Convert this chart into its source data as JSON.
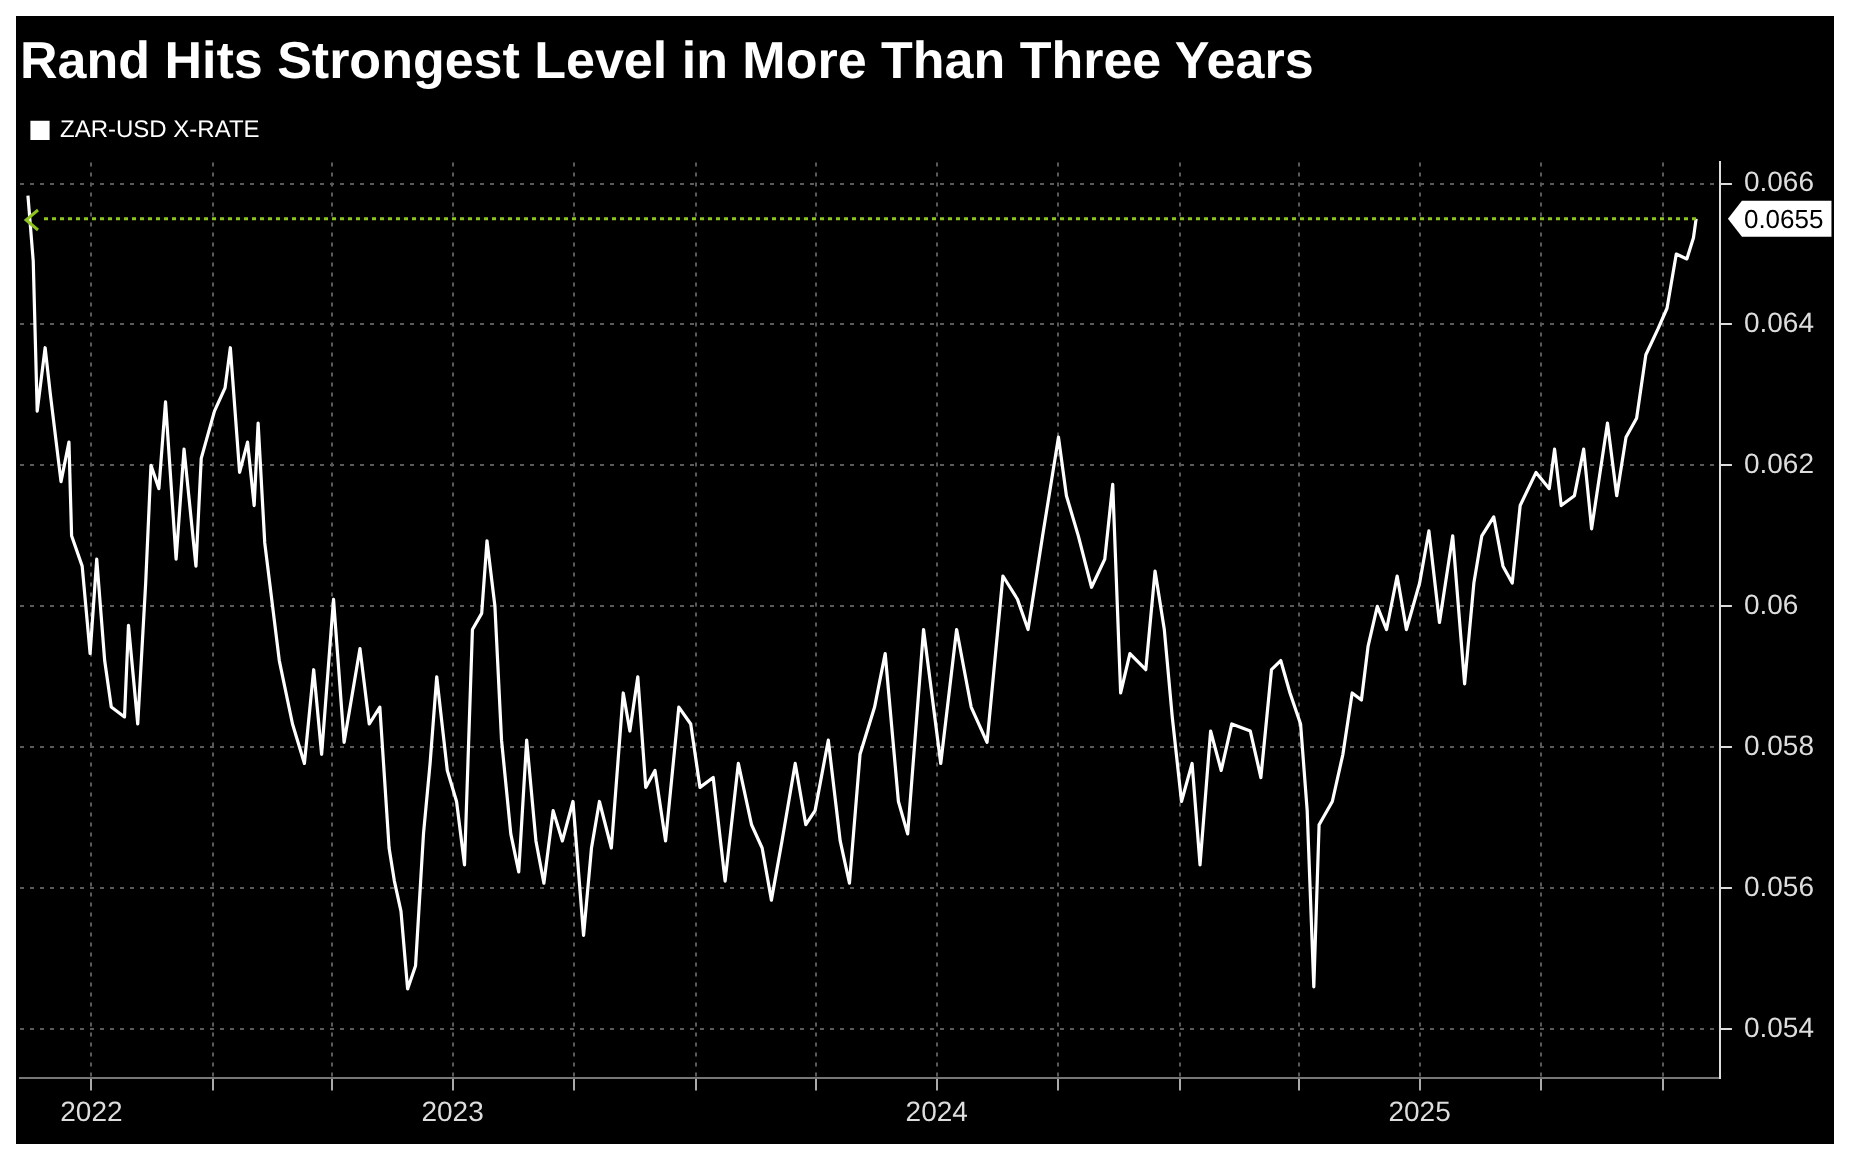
{
  "chart_data": {
    "type": "line",
    "title": "Rand Hits Strongest Level in More Than Three Years",
    "legend": "top left",
    "grid": true,
    "marker": "none",
    "xlim": [
      "2022-08-08",
      "2026-02-13"
    ],
    "ylim": [
      0.0533,
      0.0663
    ],
    "xticks": [
      {
        "value": "2022-10-01",
        "label": "2022"
      },
      {
        "value": "2023-01-01",
        "label": null
      },
      {
        "value": "2023-04-01",
        "label": null
      },
      {
        "value": "2023-07-01",
        "label": "2023"
      },
      {
        "value": "2023-10-01",
        "label": null
      },
      {
        "value": "2024-01-01",
        "label": null
      },
      {
        "value": "2024-04-01",
        "label": null
      },
      {
        "value": "2024-07-01",
        "label": "2024"
      },
      {
        "value": "2024-10-01",
        "label": null
      },
      {
        "value": "2025-01-01",
        "label": null
      },
      {
        "value": "2025-04-01",
        "label": null
      },
      {
        "value": "2025-07-01",
        "label": "2025"
      },
      {
        "value": "2025-10-01",
        "label": null
      },
      {
        "value": "2026-01-01",
        "label": null
      }
    ],
    "yticks": [
      0.066,
      0.064,
      0.062,
      0.06,
      0.058,
      0.056,
      0.054
    ],
    "ref_lines": [
      {
        "axis": "y",
        "value": 0.0655,
        "label": "0.0655",
        "color": "#8fc31f",
        "line_style": "dotted"
      }
    ],
    "x": [
      "2022-08-14",
      "2022-08-18",
      "2022-08-21",
      "2022-08-27",
      "2022-08-31",
      "2022-09-08",
      "2022-09-14",
      "2022-09-16",
      "2022-09-24",
      "2022-09-30",
      "2022-10-05",
      "2022-10-11",
      "2022-10-16",
      "2022-10-26",
      "2022-10-29",
      "2022-11-05",
      "2022-11-11",
      "2022-11-15",
      "2022-11-21",
      "2022-11-26",
      "2022-12-04",
      "2022-12-10",
      "2022-12-19",
      "2022-12-23",
      "2023-01-02",
      "2023-01-10",
      "2023-01-14",
      "2023-01-21",
      "2023-01-27",
      "2023-02-01",
      "2023-02-04",
      "2023-02-09",
      "2023-02-20",
      "2023-03-02",
      "2023-03-11",
      "2023-03-18",
      "2023-03-24",
      "2023-04-02",
      "2023-04-10",
      "2023-04-22",
      "2023-04-29",
      "2023-05-07",
      "2023-05-14",
      "2023-05-18",
      "2023-05-23",
      "2023-05-28",
      "2023-06-03",
      "2023-06-09",
      "2023-06-14",
      "2023-06-19",
      "2023-06-27",
      "2023-07-04",
      "2023-07-10",
      "2023-07-16",
      "2023-07-23",
      "2023-07-27",
      "2023-08-02",
      "2023-08-07",
      "2023-08-14",
      "2023-08-20",
      "2023-08-26",
      "2023-09-02",
      "2023-09-08",
      "2023-09-15",
      "2023-09-22",
      "2023-09-30",
      "2023-10-08",
      "2023-10-14",
      "2023-10-20",
      "2023-10-29",
      "2023-11-07",
      "2023-11-12",
      "2023-11-18",
      "2023-11-24",
      "2023-12-01",
      "2023-12-09",
      "2023-12-19",
      "2023-12-28",
      "2024-01-04",
      "2024-01-14",
      "2024-01-23",
      "2024-02-02",
      "2024-02-12",
      "2024-02-20",
      "2024-02-27",
      "2024-03-06",
      "2024-03-16",
      "2024-03-24",
      "2024-03-31",
      "2024-04-10",
      "2024-04-19",
      "2024-04-26",
      "2024-05-04",
      "2024-05-15",
      "2024-05-23",
      "2024-06-02",
      "2024-06-09",
      "2024-06-21",
      "2024-07-04",
      "2024-07-16",
      "2024-07-27",
      "2024-08-08",
      "2024-08-20",
      "2024-08-31",
      "2024-09-08",
      "2024-09-19",
      "2024-10-01",
      "2024-10-07",
      "2024-10-16",
      "2024-10-26",
      "2024-11-05",
      "2024-11-11",
      "2024-11-17",
      "2024-11-24",
      "2024-12-06",
      "2024-12-13",
      "2024-12-20",
      "2024-12-26",
      "2025-01-02",
      "2025-01-10",
      "2025-01-16",
      "2025-01-24",
      "2025-02-01",
      "2025-02-09",
      "2025-02-23",
      "2025-03-03",
      "2025-03-11",
      "2025-03-18",
      "2025-03-25",
      "2025-04-02",
      "2025-04-07",
      "2025-04-12",
      "2025-04-16",
      "2025-04-26",
      "2025-05-04",
      "2025-05-11",
      "2025-05-18",
      "2025-05-23",
      "2025-05-30",
      "2025-06-06",
      "2025-06-14",
      "2025-06-21",
      "2025-07-01",
      "2025-07-08",
      "2025-07-16",
      "2025-07-26",
      "2025-08-04",
      "2025-08-11",
      "2025-08-17",
      "2025-08-26",
      "2025-09-02",
      "2025-09-09",
      "2025-09-15",
      "2025-09-27",
      "2025-10-07",
      "2025-10-11",
      "2025-10-16",
      "2025-10-26",
      "2025-11-02",
      "2025-11-08",
      "2025-11-20",
      "2025-11-27",
      "2025-12-04",
      "2025-12-12",
      "2025-12-19",
      "2025-12-28",
      "2026-01-04",
      "2026-01-11",
      "2026-01-19",
      "2026-01-24",
      "2026-01-26"
    ],
    "series": [
      {
        "name": "ZAR-USD X-RATE",
        "color": "#ffffff",
        "values": [
          0.06583,
          0.0649,
          0.06277,
          0.06367,
          0.063,
          0.06177,
          0.06233,
          0.061,
          0.06057,
          0.05933,
          0.06067,
          0.05923,
          0.05857,
          0.05843,
          0.05973,
          0.05833,
          0.06033,
          0.062,
          0.06167,
          0.0629,
          0.06067,
          0.06223,
          0.06057,
          0.0621,
          0.06277,
          0.0631,
          0.06367,
          0.0619,
          0.06233,
          0.06143,
          0.0626,
          0.0609,
          0.05923,
          0.05833,
          0.05777,
          0.0591,
          0.0579,
          0.0601,
          0.05807,
          0.0594,
          0.05833,
          0.05857,
          0.05657,
          0.0561,
          0.05567,
          0.05457,
          0.0549,
          0.05677,
          0.05777,
          0.059,
          0.05767,
          0.05723,
          0.05633,
          0.05967,
          0.0599,
          0.06093,
          0.06,
          0.0581,
          0.05677,
          0.05623,
          0.0581,
          0.05667,
          0.05607,
          0.0571,
          0.05667,
          0.05723,
          0.05533,
          0.05657,
          0.05723,
          0.05657,
          0.05877,
          0.05823,
          0.059,
          0.05743,
          0.05767,
          0.05667,
          0.05857,
          0.05833,
          0.05743,
          0.05757,
          0.0561,
          0.05777,
          0.0569,
          0.05657,
          0.05583,
          0.05667,
          0.05777,
          0.0569,
          0.0571,
          0.0581,
          0.05667,
          0.05607,
          0.0579,
          0.05857,
          0.05933,
          0.05723,
          0.05677,
          0.05967,
          0.05777,
          0.05967,
          0.05857,
          0.05807,
          0.06043,
          0.0601,
          0.05967,
          0.061,
          0.0624,
          0.06157,
          0.061,
          0.06027,
          0.06067,
          0.06173,
          0.05877,
          0.05933,
          0.0591,
          0.0605,
          0.05967,
          0.05843,
          0.05723,
          0.05777,
          0.05633,
          0.05823,
          0.05767,
          0.05833,
          0.05823,
          0.05757,
          0.0591,
          0.05923,
          0.05877,
          0.05833,
          0.0571,
          0.0546,
          0.0569,
          0.05723,
          0.0579,
          0.05877,
          0.05867,
          0.05943,
          0.06,
          0.05967,
          0.06043,
          0.05967,
          0.06033,
          0.06107,
          0.05977,
          0.061,
          0.0589,
          0.06033,
          0.061,
          0.06127,
          0.06057,
          0.06033,
          0.06143,
          0.0619,
          0.06167,
          0.06223,
          0.06143,
          0.06157,
          0.06223,
          0.0611,
          0.0626,
          0.06157,
          0.0624,
          0.06267,
          0.06357,
          0.06393,
          0.06423,
          0.065,
          0.06493,
          0.06523,
          0.0655
        ]
      }
    ]
  }
}
